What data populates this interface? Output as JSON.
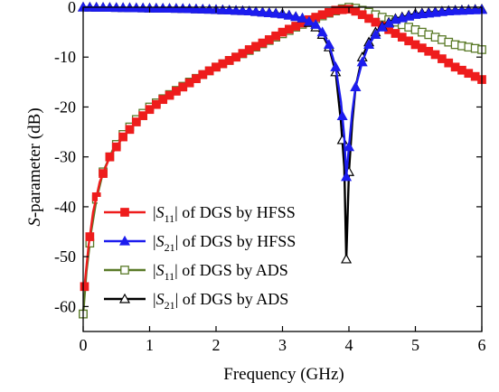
{
  "chart_data": {
    "type": "line",
    "title": "",
    "xlabel": "Frequency (GHz)",
    "ylabel_italic": "S",
    "ylabel_rest": "-parameter (dB)",
    "xlim": [
      0,
      6
    ],
    "ylim": [
      -65,
      0
    ],
    "xticks": [
      0,
      1,
      2,
      3,
      4,
      5,
      6
    ],
    "yticks": [
      0,
      -10,
      -20,
      -30,
      -40,
      -50,
      -60
    ],
    "grid": false,
    "legend_position": "lower-left",
    "series": [
      {
        "name": "|S11| of DGS by HFSS",
        "legend_label": {
          "pre": "|",
          "sym": "S",
          "sub": "11",
          "post": "| of DGS by HFSS"
        },
        "color": "#ee1c1c",
        "marker": "square-filled",
        "points": [
          [
            0.02,
            -56
          ],
          [
            0.08,
            -48
          ],
          [
            0.15,
            -41
          ],
          [
            0.25,
            -35
          ],
          [
            0.4,
            -30
          ],
          [
            0.6,
            -26
          ],
          [
            0.8,
            -23
          ],
          [
            1.0,
            -20.5
          ],
          [
            1.2,
            -18.5
          ],
          [
            1.5,
            -16
          ],
          [
            1.8,
            -13.5
          ],
          [
            2.0,
            -12
          ],
          [
            2.3,
            -10
          ],
          [
            2.5,
            -8.5
          ],
          [
            2.8,
            -6.5
          ],
          [
            3.0,
            -5
          ],
          [
            3.2,
            -3.8
          ],
          [
            3.4,
            -2.5
          ],
          [
            3.6,
            -1.5
          ],
          [
            3.8,
            -0.6
          ],
          [
            4.0,
            -0.4
          ],
          [
            4.1,
            -0.8
          ],
          [
            4.2,
            -1.5
          ],
          [
            4.4,
            -3
          ],
          [
            4.6,
            -4.5
          ],
          [
            4.8,
            -6
          ],
          [
            5.0,
            -7.5
          ],
          [
            5.3,
            -9.5
          ],
          [
            5.6,
            -12
          ],
          [
            6.0,
            -14.5
          ]
        ]
      },
      {
        "name": "|S21| of DGS by HFSS",
        "legend_label": {
          "pre": "|",
          "sym": "S",
          "sub": "21",
          "post": "| of DGS by HFSS"
        },
        "color": "#1c1cee",
        "marker": "triangle-filled",
        "points": [
          [
            0.0,
            0
          ],
          [
            0.5,
            -0.1
          ],
          [
            1.0,
            -0.2
          ],
          [
            1.5,
            -0.3
          ],
          [
            2.0,
            -0.5
          ],
          [
            2.5,
            -0.8
          ],
          [
            3.0,
            -1.4
          ],
          [
            3.3,
            -2.2
          ],
          [
            3.5,
            -3.5
          ],
          [
            3.6,
            -5
          ],
          [
            3.7,
            -7.5
          ],
          [
            3.8,
            -12
          ],
          [
            3.88,
            -19
          ],
          [
            3.93,
            -26
          ],
          [
            3.96,
            -34
          ],
          [
            4.0,
            -28
          ],
          [
            4.05,
            -21
          ],
          [
            4.1,
            -16
          ],
          [
            4.2,
            -11
          ],
          [
            4.3,
            -7.5
          ],
          [
            4.4,
            -5.5
          ],
          [
            4.5,
            -4
          ],
          [
            4.7,
            -2.5
          ],
          [
            5.0,
            -1.5
          ],
          [
            5.5,
            -0.8
          ],
          [
            6.0,
            -0.5
          ]
        ]
      },
      {
        "name": "|S11| of DGS by ADS",
        "legend_label": {
          "pre": "|",
          "sym": "S",
          "sub": "11",
          "post": "| of DGS by ADS"
        },
        "color": "#5a7a28",
        "marker": "square-open",
        "points": [
          [
            0.0,
            -61.5
          ],
          [
            0.05,
            -53
          ],
          [
            0.12,
            -45
          ],
          [
            0.2,
            -38.5
          ],
          [
            0.3,
            -33
          ],
          [
            0.45,
            -28.5
          ],
          [
            0.6,
            -25.5
          ],
          [
            0.8,
            -22.5
          ],
          [
            1.0,
            -20
          ],
          [
            1.3,
            -17.5
          ],
          [
            1.6,
            -15
          ],
          [
            2.0,
            -12
          ],
          [
            2.3,
            -10
          ],
          [
            2.6,
            -8
          ],
          [
            2.9,
            -6
          ],
          [
            3.2,
            -4
          ],
          [
            3.5,
            -2.3
          ],
          [
            3.7,
            -1.2
          ],
          [
            3.9,
            -0.3
          ],
          [
            4.0,
            0
          ],
          [
            4.1,
            -0.2
          ],
          [
            4.3,
            -1
          ],
          [
            4.5,
            -2
          ],
          [
            4.8,
            -3.5
          ],
          [
            5.0,
            -4.5
          ],
          [
            5.3,
            -6
          ],
          [
            5.6,
            -7.5
          ],
          [
            6.0,
            -8.5
          ]
        ]
      },
      {
        "name": "|S21| of DGS by ADS",
        "legend_label": {
          "pre": "|",
          "sym": "S",
          "sub": "21",
          "post": "| of DGS by ADS"
        },
        "color": "#000000",
        "marker": "triangle-open",
        "points": [
          [
            0.0,
            0
          ],
          [
            0.5,
            -0.1
          ],
          [
            1.0,
            -0.2
          ],
          [
            1.5,
            -0.3
          ],
          [
            2.0,
            -0.5
          ],
          [
            2.5,
            -0.8
          ],
          [
            3.0,
            -1.3
          ],
          [
            3.3,
            -2.2
          ],
          [
            3.5,
            -4
          ],
          [
            3.6,
            -5.5
          ],
          [
            3.7,
            -8
          ],
          [
            3.8,
            -13
          ],
          [
            3.88,
            -23
          ],
          [
            3.93,
            -32
          ],
          [
            3.96,
            -50.5
          ],
          [
            4.0,
            -33
          ],
          [
            4.05,
            -23
          ],
          [
            4.1,
            -16
          ],
          [
            4.2,
            -10
          ],
          [
            4.3,
            -7
          ],
          [
            4.4,
            -5
          ],
          [
            4.5,
            -3.8
          ],
          [
            4.7,
            -2.3
          ],
          [
            5.0,
            -1.3
          ],
          [
            5.5,
            -0.7
          ],
          [
            6.0,
            -0.4
          ]
        ]
      }
    ]
  }
}
